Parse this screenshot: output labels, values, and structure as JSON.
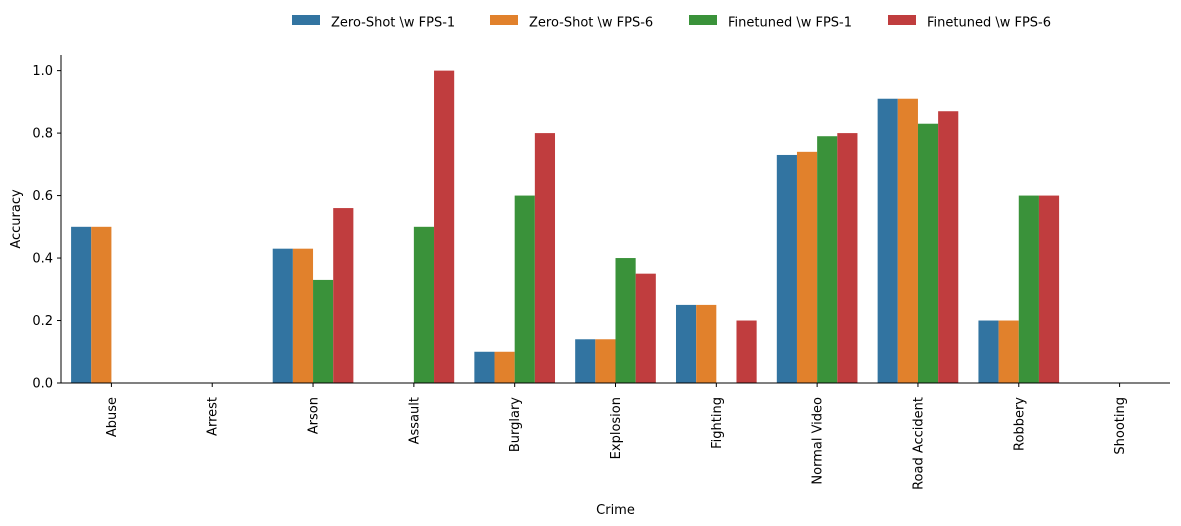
{
  "chart_data": {
    "type": "bar",
    "xlabel": "Crime",
    "ylabel": "Accuracy",
    "categories": [
      "Abuse",
      "Arrest",
      "Arson",
      "Assault",
      "Burglary",
      "Explosion",
      "Fighting",
      "Normal Video",
      "Road Accident",
      "Robbery",
      "Shooting"
    ],
    "ylim": [
      0,
      1.05
    ],
    "yticks": [
      0.0,
      0.2,
      0.4,
      0.6,
      0.8,
      1.0
    ],
    "ytick_labels": [
      "0.0",
      "0.2",
      "0.4",
      "0.6",
      "0.8",
      "1.0"
    ],
    "grid": false,
    "legend_position": "top-center",
    "series": [
      {
        "name": "Zero-Shot \\w FPS-1",
        "color": "#3274a1",
        "values": [
          0.5,
          0,
          0.43,
          0,
          0.1,
          0.14,
          0.25,
          0.73,
          0.91,
          0.2,
          0
        ]
      },
      {
        "name": "Zero-Shot \\w FPS-6",
        "color": "#e1812c",
        "values": [
          0.5,
          0,
          0.43,
          0,
          0.1,
          0.14,
          0.25,
          0.74,
          0.91,
          0.2,
          0
        ]
      },
      {
        "name": "Finetuned \\w FPS-1",
        "color": "#3a923a",
        "values": [
          0,
          0,
          0.33,
          0.5,
          0.6,
          0.4,
          0,
          0.79,
          0.83,
          0.6,
          0
        ]
      },
      {
        "name": "Finetuned \\w FPS-6",
        "color": "#c03d3e",
        "values": [
          0,
          0,
          0.56,
          1.0,
          0.8,
          0.35,
          0.2,
          0.8,
          0.87,
          0.6,
          0
        ]
      }
    ]
  }
}
